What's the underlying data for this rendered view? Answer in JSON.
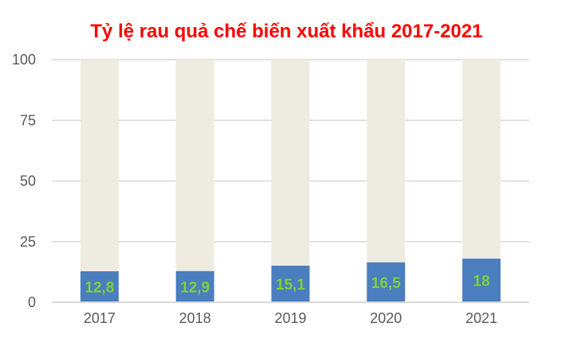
{
  "chart_data": {
    "type": "bar",
    "stacked": true,
    "title": "Tỷ lệ rau quả chế biến xuất khẩu 2017-2021",
    "categories": [
      "2017",
      "2018",
      "2019",
      "2020",
      "2021"
    ],
    "series": [
      {
        "values": [
          12.8,
          12.9,
          15.1,
          16.5,
          18
        ],
        "color": "#4a7ebf",
        "data_labels": [
          "12,8",
          "12,9",
          "15,1",
          "16,5",
          "18"
        ]
      },
      {
        "values": [
          87.2,
          87.1,
          84.9,
          83.5,
          82
        ],
        "color": "#eeece1"
      }
    ],
    "yticks": [
      "0",
      "25",
      "50",
      "75",
      "100"
    ],
    "ylim": [
      0,
      100
    ],
    "xlabel": "",
    "ylabel": "",
    "grid": true,
    "legend": "none",
    "title_color": "#ff0000",
    "data_label_color": "#7ed03a"
  }
}
